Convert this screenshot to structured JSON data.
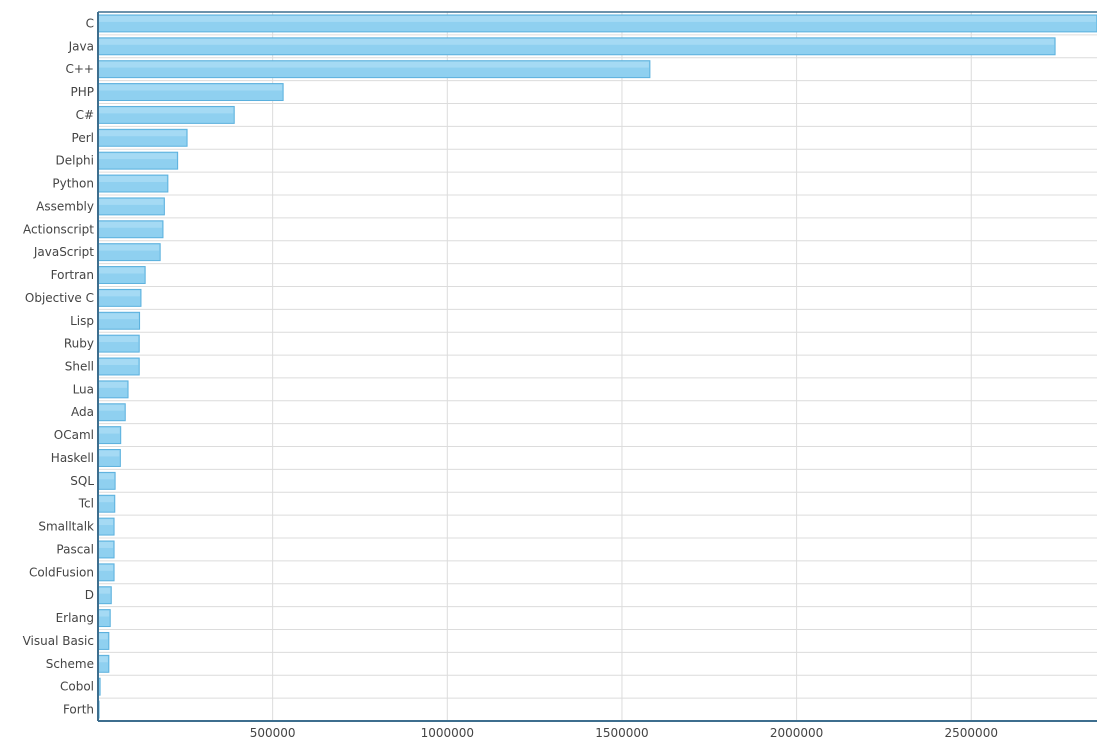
{
  "chart_data": {
    "type": "bar",
    "orientation": "horizontal",
    "categories": [
      "C",
      "Java",
      "C++",
      "PHP",
      "C#",
      "Perl",
      "Delphi",
      "Python",
      "Assembly",
      "Actionscript",
      "JavaScript",
      "Fortran",
      "Objective C",
      "Lisp",
      "Ruby",
      "Shell",
      "Lua",
      "Ada",
      "OCaml",
      "Haskell",
      "SQL",
      "Tcl",
      "Smalltalk",
      "Pascal",
      "ColdFusion",
      "D",
      "Erlang",
      "Visual Basic",
      "Scheme",
      "Cobol",
      "Forth"
    ],
    "values": [
      2900000,
      2740000,
      1580000,
      530000,
      390000,
      255000,
      228000,
      200000,
      190000,
      186000,
      178000,
      135000,
      123000,
      119000,
      118000,
      118000,
      86000,
      78000,
      65000,
      64000,
      49000,
      48000,
      46000,
      46000,
      46000,
      38000,
      35000,
      31000,
      31000,
      6000,
      3000
    ],
    "x_ticks": [
      "500000",
      "1000000",
      "1500000",
      "2000000",
      "2500000"
    ],
    "x_tick_values": [
      500000,
      1000000,
      1500000,
      2000000,
      2500000
    ],
    "xlim": [
      0,
      2860000
    ],
    "grid": true,
    "bar_color": "#8fd0f0",
    "bar_edge_color": "#5ab0dd",
    "axis_color": "#3d6e8e",
    "grid_color": "#dcdcdc",
    "text_color": "#444444",
    "title": "",
    "xlabel": "",
    "ylabel": ""
  }
}
